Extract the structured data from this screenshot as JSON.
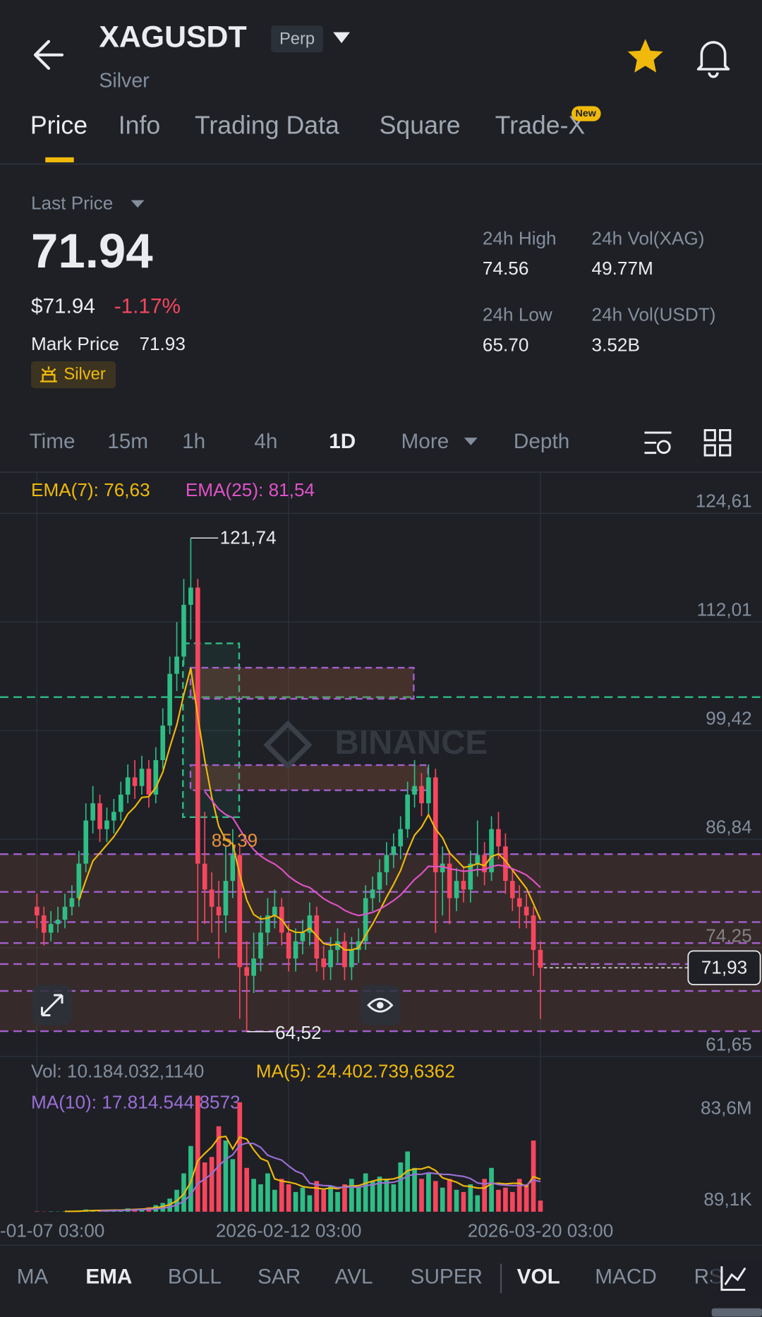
{
  "header": {
    "symbol": "XAGUSDT",
    "badge": "Perp",
    "name": "Silver"
  },
  "tabs": [
    "Price",
    "Info",
    "Trading Data",
    "Square",
    "Trade-X"
  ],
  "tab_badge": "New",
  "summary": {
    "last_price_label": "Last Price",
    "last_price": "71.94",
    "usd_price": "$71.94",
    "change": "-1.17%",
    "mark_price_label": "Mark Price",
    "mark_price": "71.93",
    "tag": "Silver",
    "stats": [
      {
        "label": "24h High",
        "value": "74.56"
      },
      {
        "label": "24h Vol(XAG)",
        "value": "49.77M"
      },
      {
        "label": "24h Low",
        "value": "65.70"
      },
      {
        "label": "24h Vol(USDT)",
        "value": "3.52B"
      }
    ]
  },
  "intervals": [
    "Time",
    "15m",
    "1h",
    "4h",
    "1D",
    "More",
    "Depth"
  ],
  "chart": {
    "type": "candlestick",
    "legend": [
      "EMA(7): 76,63",
      "EMA(25): 81,54"
    ],
    "watermark": "BINANCE",
    "candles": [
      [
        79,
        80.5,
        76.5,
        78
      ],
      [
        78,
        79,
        74.5,
        76
      ],
      [
        76,
        78.5,
        75,
        77
      ],
      [
        77,
        79,
        76,
        77.5
      ],
      [
        77.5,
        80.5,
        76.5,
        79
      ],
      [
        79,
        81.5,
        78,
        80
      ],
      [
        80,
        85.5,
        79,
        84
      ],
      [
        84,
        91,
        83,
        89
      ],
      [
        89,
        93,
        87.5,
        91
      ],
      [
        91,
        92,
        86.5,
        88
      ],
      [
        88,
        90.5,
        86.5,
        89
      ],
      [
        89,
        91.5,
        87.5,
        90
      ],
      [
        90,
        93.5,
        89,
        92
      ],
      [
        92,
        95.5,
        91,
        94
      ],
      [
        94,
        96,
        91.5,
        93
      ],
      [
        93,
        96.5,
        92,
        95
      ],
      [
        95,
        96,
        90.5,
        92
      ],
      [
        92,
        97.5,
        91,
        96
      ],
      [
        96,
        102,
        95,
        100
      ],
      [
        100,
        108,
        99,
        106
      ],
      [
        106,
        112,
        104,
        108
      ],
      [
        108,
        117,
        107,
        114
      ],
      [
        114,
        121.74,
        110,
        116
      ],
      [
        116,
        117,
        75,
        84
      ],
      [
        84,
        90,
        77,
        81
      ],
      [
        81,
        83,
        76,
        79
      ],
      [
        79,
        82,
        73,
        78
      ],
      [
        78,
        86,
        76,
        82
      ],
      [
        82,
        88,
        80,
        85
      ],
      [
        85,
        86,
        66,
        72
      ],
      [
        72,
        75,
        64.52,
        71
      ],
      [
        71,
        76,
        69,
        73
      ],
      [
        73,
        78,
        71.5,
        76
      ],
      [
        76,
        80,
        74.5,
        78
      ],
      [
        78,
        81,
        76.5,
        79
      ],
      [
        79,
        80,
        74.5,
        76
      ],
      [
        76,
        77,
        71.5,
        73
      ],
      [
        73,
        76.5,
        71.5,
        75
      ],
      [
        75,
        77.5,
        73.5,
        76
      ],
      [
        76,
        79.5,
        74.5,
        78
      ],
      [
        78,
        79,
        71.5,
        73
      ],
      [
        73,
        74.5,
        70.5,
        72
      ],
      [
        72,
        75.5,
        70.5,
        74
      ],
      [
        74,
        76.5,
        72.5,
        75
      ],
      [
        75,
        76,
        70.5,
        72
      ],
      [
        72,
        75.5,
        70.5,
        74
      ],
      [
        74,
        76.5,
        72.5,
        75
      ],
      [
        75,
        81.5,
        74,
        80
      ],
      [
        80,
        82.5,
        78.5,
        81
      ],
      [
        81,
        84.5,
        79.5,
        83
      ],
      [
        83,
        86.5,
        81.5,
        85
      ],
      [
        85,
        87.5,
        83.5,
        86
      ],
      [
        86,
        89.5,
        84.5,
        88
      ],
      [
        88,
        93.5,
        87,
        92
      ],
      [
        92,
        96,
        90.5,
        93
      ],
      [
        93,
        94.5,
        89.5,
        91
      ],
      [
        91,
        95.5,
        89.5,
        94
      ],
      [
        94,
        95,
        76,
        83
      ],
      [
        83,
        86,
        78,
        84
      ],
      [
        84,
        85.5,
        77,
        80
      ],
      [
        80,
        83.5,
        78.5,
        82
      ],
      [
        82,
        83.5,
        79.5,
        81
      ],
      [
        81,
        85.5,
        79.5,
        84
      ],
      [
        84,
        89,
        82.5,
        85
      ],
      [
        85,
        86.5,
        81.5,
        83
      ],
      [
        83,
        89.5,
        82,
        88
      ],
      [
        88,
        90,
        84.5,
        86
      ],
      [
        86,
        87.5,
        80.5,
        82
      ],
      [
        82,
        83.5,
        78.5,
        80
      ],
      [
        80,
        81.5,
        76.5,
        79
      ],
      [
        79,
        80.5,
        76.5,
        78
      ],
      [
        78,
        79,
        71,
        74
      ],
      [
        74,
        75,
        66,
        71.94
      ]
    ],
    "ylim": [
      61.46,
      129.38
    ],
    "yticks": [
      {
        "value": 124.61,
        "label": "124,61"
      },
      {
        "value": 112.01,
        "label": "112,01"
      },
      {
        "value": 99.42,
        "label": "99,42"
      },
      {
        "value": 86.84,
        "label": "86,84"
      },
      {
        "value": 74.25,
        "label": "74,25"
      },
      {
        "value": 61.65,
        "label": "61,65"
      }
    ],
    "high_label": {
      "value": 121.74,
      "label": "121,74"
    },
    "low_label": {
      "value": 64.52,
      "label": "64,52"
    },
    "level": {
      "value": 85.39,
      "label": "85,39"
    },
    "current": {
      "value": 71.93,
      "label": "71,93"
    },
    "x_labels": [
      "-01-07 03:00",
      "2026-02-12 03:00",
      "2026-03-20 03:00"
    ],
    "volume": {
      "legend": [
        "Vol: 10.184.032,1140",
        "MA(5): 24.402.739,6362",
        "MA(10): 17.814.544,8573"
      ],
      "values": [
        0.3,
        0.2,
        0.3,
        0.2,
        0.4,
        0.5,
        1,
        2,
        1.5,
        1,
        1.2,
        1.5,
        2,
        3,
        2.5,
        3,
        4,
        6,
        8,
        12,
        20,
        35,
        60,
        106,
        45,
        50,
        78,
        65,
        48,
        100,
        40,
        30,
        25,
        35,
        20,
        30,
        25,
        18,
        22,
        15,
        28,
        20,
        24,
        18,
        25,
        30,
        22,
        35,
        28,
        32,
        30,
        25,
        45,
        55,
        40,
        30,
        35,
        28,
        22,
        30,
        20,
        18,
        25,
        15,
        30,
        40,
        20,
        22,
        18,
        30,
        25,
        65,
        10.18
      ],
      "ylim": [
        0,
        109.6
      ],
      "yticks": [
        {
          "value": 83.6,
          "label": "83,6M"
        },
        {
          "value": 0.0891,
          "label": "89,1K"
        }
      ]
    }
  },
  "indicators": [
    "MA",
    "EMA",
    "BOLL",
    "SAR",
    "AVL",
    "SUPER",
    "VOL",
    "MACD",
    "RS"
  ]
}
